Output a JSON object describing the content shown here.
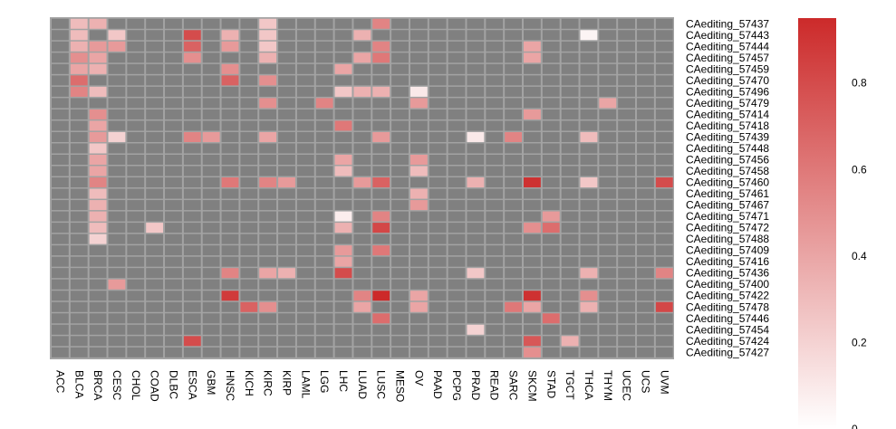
{
  "chart_data": {
    "type": "heatmap",
    "title": "",
    "xlabel": "",
    "ylabel": "",
    "na_color": "#808080",
    "low_color": "#ffffff",
    "high_color": "#cc2a2a",
    "value_range": [
      0,
      0.95
    ],
    "columns": [
      "ACC",
      "BLCA",
      "BRCA",
      "CESC",
      "CHOL",
      "COAD",
      "DLBC",
      "ESCA",
      "GBM",
      "HNSC",
      "KICH",
      "KIRC",
      "KIRP",
      "LAML",
      "LGG",
      "LHC",
      "LUAD",
      "LUSC",
      "MESO",
      "OV",
      "PAAD",
      "PCPG",
      "PRAD",
      "READ",
      "SARC",
      "SKCM",
      "STAD",
      "TGCT",
      "THCA",
      "THYM",
      "UCEC",
      "UCS",
      "UVM"
    ],
    "rows": [
      "CAediting_57437",
      "CAediting_57443",
      "CAediting_57444",
      "CAediting_57457",
      "CAediting_57459",
      "CAediting_57470",
      "CAediting_57496",
      "CAediting_57479",
      "CAediting_57414",
      "CAediting_57418",
      "CAediting_57439",
      "CAediting_57448",
      "CAediting_57456",
      "CAediting_57458",
      "CAediting_57460",
      "CAediting_57461",
      "CAediting_57467",
      "CAediting_57471",
      "CAediting_57472",
      "CAediting_57488",
      "CAediting_57409",
      "CAediting_57416",
      "CAediting_57436",
      "CAediting_57400",
      "CAediting_57422",
      "CAediting_57478",
      "CAediting_57446",
      "CAediting_57454",
      "CAediting_57424",
      "CAediting_57427"
    ],
    "cells": [
      {
        "row": 0,
        "col": 1,
        "value": 0.3
      },
      {
        "row": 0,
        "col": 2,
        "value": 0.35
      },
      {
        "row": 0,
        "col": 11,
        "value": 0.25
      },
      {
        "row": 0,
        "col": 17,
        "value": 0.55
      },
      {
        "row": 1,
        "col": 1,
        "value": 0.3
      },
      {
        "row": 1,
        "col": 3,
        "value": 0.25
      },
      {
        "row": 1,
        "col": 7,
        "value": 0.8
      },
      {
        "row": 1,
        "col": 9,
        "value": 0.35
      },
      {
        "row": 1,
        "col": 11,
        "value": 0.25
      },
      {
        "row": 1,
        "col": 16,
        "value": 0.35
      },
      {
        "row": 1,
        "col": 28,
        "value": 0.05
      },
      {
        "row": 2,
        "col": 1,
        "value": 0.35
      },
      {
        "row": 2,
        "col": 2,
        "value": 0.45
      },
      {
        "row": 2,
        "col": 3,
        "value": 0.45
      },
      {
        "row": 2,
        "col": 7,
        "value": 0.7
      },
      {
        "row": 2,
        "col": 9,
        "value": 0.45
      },
      {
        "row": 2,
        "col": 11,
        "value": 0.25
      },
      {
        "row": 2,
        "col": 17,
        "value": 0.55
      },
      {
        "row": 2,
        "col": 25,
        "value": 0.4
      },
      {
        "row": 3,
        "col": 1,
        "value": 0.5
      },
      {
        "row": 3,
        "col": 2,
        "value": 0.4
      },
      {
        "row": 3,
        "col": 7,
        "value": 0.5
      },
      {
        "row": 3,
        "col": 11,
        "value": 0.35
      },
      {
        "row": 3,
        "col": 16,
        "value": 0.4
      },
      {
        "row": 3,
        "col": 17,
        "value": 0.6
      },
      {
        "row": 3,
        "col": 25,
        "value": 0.4
      },
      {
        "row": 4,
        "col": 1,
        "value": 0.4
      },
      {
        "row": 4,
        "col": 2,
        "value": 0.35
      },
      {
        "row": 4,
        "col": 9,
        "value": 0.5
      },
      {
        "row": 4,
        "col": 15,
        "value": 0.4
      },
      {
        "row": 5,
        "col": 1,
        "value": 0.65
      },
      {
        "row": 5,
        "col": 9,
        "value": 0.7
      },
      {
        "row": 5,
        "col": 11,
        "value": 0.5
      },
      {
        "row": 6,
        "col": 1,
        "value": 0.55
      },
      {
        "row": 6,
        "col": 2,
        "value": 0.3
      },
      {
        "row": 6,
        "col": 15,
        "value": 0.25
      },
      {
        "row": 6,
        "col": 16,
        "value": 0.35
      },
      {
        "row": 6,
        "col": 17,
        "value": 0.35
      },
      {
        "row": 6,
        "col": 19,
        "value": 0.1
      },
      {
        "row": 7,
        "col": 11,
        "value": 0.5
      },
      {
        "row": 7,
        "col": 14,
        "value": 0.55
      },
      {
        "row": 7,
        "col": 19,
        "value": 0.45
      },
      {
        "row": 7,
        "col": 29,
        "value": 0.4
      },
      {
        "row": 8,
        "col": 2,
        "value": 0.5
      },
      {
        "row": 8,
        "col": 25,
        "value": 0.45
      },
      {
        "row": 9,
        "col": 2,
        "value": 0.4
      },
      {
        "row": 9,
        "col": 15,
        "value": 0.6
      },
      {
        "row": 10,
        "col": 2,
        "value": 0.45
      },
      {
        "row": 10,
        "col": 3,
        "value": 0.2
      },
      {
        "row": 10,
        "col": 7,
        "value": 0.55
      },
      {
        "row": 10,
        "col": 8,
        "value": 0.45
      },
      {
        "row": 10,
        "col": 11,
        "value": 0.4
      },
      {
        "row": 10,
        "col": 17,
        "value": 0.45
      },
      {
        "row": 10,
        "col": 22,
        "value": 0.1
      },
      {
        "row": 10,
        "col": 24,
        "value": 0.55
      },
      {
        "row": 10,
        "col": 28,
        "value": 0.3
      },
      {
        "row": 11,
        "col": 2,
        "value": 0.25
      },
      {
        "row": 12,
        "col": 2,
        "value": 0.4
      },
      {
        "row": 12,
        "col": 15,
        "value": 0.4
      },
      {
        "row": 12,
        "col": 19,
        "value": 0.45
      },
      {
        "row": 13,
        "col": 2,
        "value": 0.4
      },
      {
        "row": 13,
        "col": 15,
        "value": 0.3
      },
      {
        "row": 13,
        "col": 19,
        "value": 0.3
      },
      {
        "row": 14,
        "col": 2,
        "value": 0.55
      },
      {
        "row": 14,
        "col": 9,
        "value": 0.6
      },
      {
        "row": 14,
        "col": 11,
        "value": 0.55
      },
      {
        "row": 14,
        "col": 12,
        "value": 0.45
      },
      {
        "row": 14,
        "col": 16,
        "value": 0.45
      },
      {
        "row": 14,
        "col": 17,
        "value": 0.7
      },
      {
        "row": 14,
        "col": 22,
        "value": 0.35
      },
      {
        "row": 14,
        "col": 25,
        "value": 0.92
      },
      {
        "row": 14,
        "col": 28,
        "value": 0.25
      },
      {
        "row": 14,
        "col": 32,
        "value": 0.8
      },
      {
        "row": 15,
        "col": 2,
        "value": 0.3
      },
      {
        "row": 15,
        "col": 19,
        "value": 0.35
      },
      {
        "row": 16,
        "col": 2,
        "value": 0.35
      },
      {
        "row": 16,
        "col": 19,
        "value": 0.45
      },
      {
        "row": 17,
        "col": 2,
        "value": 0.35
      },
      {
        "row": 17,
        "col": 15,
        "value": 0.08
      },
      {
        "row": 17,
        "col": 17,
        "value": 0.55
      },
      {
        "row": 17,
        "col": 26,
        "value": 0.45
      },
      {
        "row": 18,
        "col": 2,
        "value": 0.3
      },
      {
        "row": 18,
        "col": 5,
        "value": 0.25
      },
      {
        "row": 18,
        "col": 15,
        "value": 0.35
      },
      {
        "row": 18,
        "col": 17,
        "value": 0.82
      },
      {
        "row": 18,
        "col": 25,
        "value": 0.5
      },
      {
        "row": 18,
        "col": 26,
        "value": 0.65
      },
      {
        "row": 19,
        "col": 2,
        "value": 0.2
      },
      {
        "row": 20,
        "col": 15,
        "value": 0.45
      },
      {
        "row": 20,
        "col": 17,
        "value": 0.6
      },
      {
        "row": 21,
        "col": 15,
        "value": 0.4
      },
      {
        "row": 22,
        "col": 9,
        "value": 0.55
      },
      {
        "row": 22,
        "col": 11,
        "value": 0.4
      },
      {
        "row": 22,
        "col": 12,
        "value": 0.35
      },
      {
        "row": 22,
        "col": 15,
        "value": 0.8
      },
      {
        "row": 22,
        "col": 22,
        "value": 0.25
      },
      {
        "row": 22,
        "col": 28,
        "value": 0.35
      },
      {
        "row": 22,
        "col": 32,
        "value": 0.55
      },
      {
        "row": 23,
        "col": 3,
        "value": 0.45
      },
      {
        "row": 24,
        "col": 9,
        "value": 0.88
      },
      {
        "row": 24,
        "col": 16,
        "value": 0.55
      },
      {
        "row": 24,
        "col": 17,
        "value": 0.95
      },
      {
        "row": 24,
        "col": 19,
        "value": 0.4
      },
      {
        "row": 24,
        "col": 25,
        "value": 0.92
      },
      {
        "row": 24,
        "col": 28,
        "value": 0.5
      },
      {
        "row": 25,
        "col": 10,
        "value": 0.7
      },
      {
        "row": 25,
        "col": 11,
        "value": 0.5
      },
      {
        "row": 25,
        "col": 16,
        "value": 0.4
      },
      {
        "row": 25,
        "col": 19,
        "value": 0.4
      },
      {
        "row": 25,
        "col": 24,
        "value": 0.6
      },
      {
        "row": 25,
        "col": 25,
        "value": 0.4
      },
      {
        "row": 25,
        "col": 28,
        "value": 0.35
      },
      {
        "row": 25,
        "col": 32,
        "value": 0.82
      },
      {
        "row": 26,
        "col": 17,
        "value": 0.65
      },
      {
        "row": 26,
        "col": 26,
        "value": 0.65
      },
      {
        "row": 27,
        "col": 22,
        "value": 0.2
      },
      {
        "row": 28,
        "col": 7,
        "value": 0.8
      },
      {
        "row": 28,
        "col": 25,
        "value": 0.75
      },
      {
        "row": 28,
        "col": 27,
        "value": 0.35
      },
      {
        "row": 29,
        "col": 25,
        "value": 0.5
      }
    ],
    "colorbar": {
      "ticks": [
        0.8,
        0.6,
        0.4,
        0.2,
        0
      ],
      "tick_labels": [
        "0.8",
        "0.6",
        "0.4",
        "0.2",
        "0"
      ],
      "range": [
        0,
        0.95
      ]
    }
  }
}
